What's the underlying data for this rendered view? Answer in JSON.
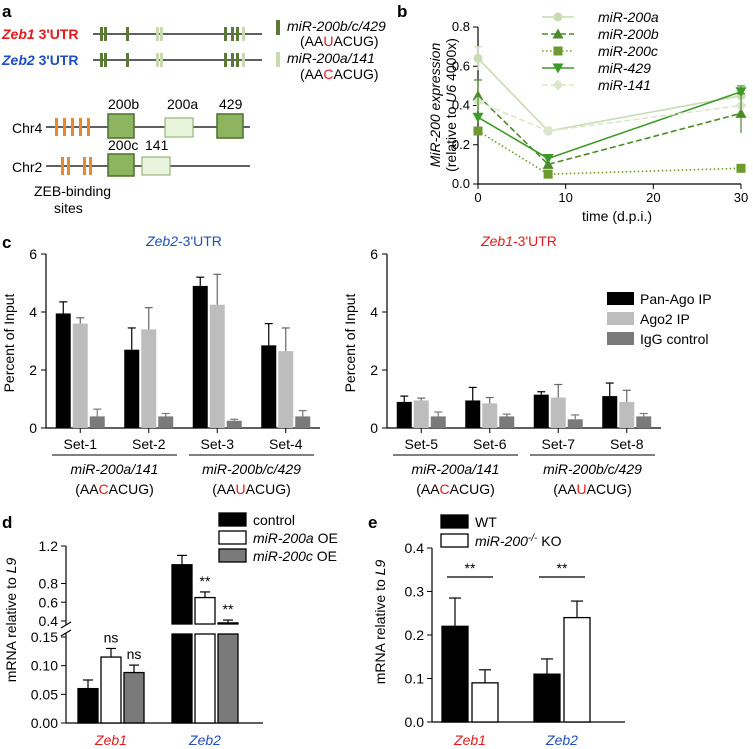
{
  "panel_a": {
    "label": "a",
    "gene1": "Zeb1",
    "gene2": "Zeb2",
    "utr": " 3'UTR",
    "legend": [
      {
        "name": "miR-200b/c/429",
        "seq_pre": "(AA",
        "seq_hl": "U",
        "seq_post": "ACUG)",
        "color": "#5b7a37"
      },
      {
        "name": "miR-200a/141",
        "seq_pre": "(AA",
        "seq_hl": "C",
        "seq_post": "ACUG)",
        "color": "#c8dbb0"
      }
    ],
    "chr4": "Chr4",
    "chr2": "Chr2",
    "genes_chr4": [
      "200b",
      "200a",
      "429"
    ],
    "genes_chr2": [
      "200c",
      "141"
    ],
    "zeb_sites_1": "ZEB-binding",
    "zeb_sites_2": "sites",
    "red": "#e41a1c",
    "blue": "#1f4fbf",
    "orange": "#e8892b"
  },
  "chart_data": [
    {
      "panel": "b",
      "type": "line",
      "ylabel_1": "MiR-200 expression",
      "ylabel_2_pre": "(relative to ",
      "ylabel_2_it": "U6",
      "ylabel_2_post": " 4000x)",
      "xlabel": "time (d.p.i.)",
      "xlim": [
        0,
        30
      ],
      "ylim": [
        0,
        0.8
      ],
      "xticks": [
        0,
        10,
        20,
        30
      ],
      "yticks": [
        0.0,
        0.2,
        0.4,
        0.6,
        0.8
      ],
      "x": [
        0,
        8,
        30
      ],
      "series": [
        {
          "name": "miR-200a",
          "values": [
            0.64,
            0.27,
            0.45
          ],
          "color": "#c9dcb3",
          "dash": "",
          "marker": "circle"
        },
        {
          "name": "miR-200b",
          "values": [
            0.45,
            0.1,
            0.36
          ],
          "color": "#4d8a2a",
          "dash": "6,3",
          "marker": "triangle-up"
        },
        {
          "name": "miR-200c",
          "values": [
            0.27,
            0.05,
            0.08
          ],
          "color": "#6c9a2f",
          "dash": "1.5,2.5",
          "marker": "square"
        },
        {
          "name": "miR-429",
          "values": [
            0.34,
            0.13,
            0.47
          ],
          "color": "#3e9a28",
          "dash": "",
          "marker": "triangle-down"
        },
        {
          "name": "miR-141",
          "values": [
            0.42,
            0.27,
            0.4
          ],
          "color": "#dbe7cc",
          "dash": "6,3",
          "marker": "diamond"
        }
      ]
    },
    {
      "panel": "c-left",
      "type": "bar",
      "title_gene": "Zeb2",
      "title_rest": "-3'UTR",
      "ylabel": "Percent of Input",
      "ylim": [
        0,
        6
      ],
      "yticks": [
        0,
        2,
        4,
        6
      ],
      "categories": [
        "Set-1",
        "Set-2",
        "Set-3",
        "Set-4"
      ],
      "series": [
        {
          "name": "Pan-Ago IP",
          "values": [
            3.95,
            2.7,
            4.9,
            2.85
          ],
          "errors": [
            0.4,
            0.75,
            0.3,
            0.75
          ],
          "color": "#000000"
        },
        {
          "name": "Ago2 IP",
          "values": [
            3.6,
            3.4,
            4.25,
            2.65
          ],
          "errors": [
            0.2,
            0.75,
            1.05,
            0.8
          ],
          "color": "#bdbdbd"
        },
        {
          "name": "IgG control",
          "values": [
            0.4,
            0.4,
            0.25,
            0.4
          ],
          "errors": [
            0.25,
            0.1,
            0.05,
            0.2
          ],
          "color": "#7a7a7a"
        }
      ],
      "groups": [
        {
          "name": "miR-200a/141",
          "seq_pre": "(AA",
          "seq_hl": "C",
          "seq_post": "ACUG)"
        },
        {
          "name": "miR-200b/c/429",
          "seq_pre": "(AA",
          "seq_hl": "U",
          "seq_post": "ACUG)"
        }
      ]
    },
    {
      "panel": "c-right",
      "type": "bar",
      "title_gene": "Zeb1",
      "title_rest": "-3'UTR",
      "ylabel": "Percent of Input",
      "ylim": [
        0,
        6
      ],
      "yticks": [
        0,
        2,
        4,
        6
      ],
      "categories": [
        "Set-5",
        "Set-6",
        "Set-7",
        "Set-8"
      ],
      "series": [
        {
          "name": "Pan-Ago IP",
          "values": [
            0.9,
            0.95,
            1.15,
            1.1
          ],
          "errors": [
            0.2,
            0.45,
            0.1,
            0.45
          ],
          "color": "#000000"
        },
        {
          "name": "Ago2 IP",
          "values": [
            0.95,
            0.85,
            1.05,
            0.9
          ],
          "errors": [
            0.08,
            0.2,
            0.45,
            0.4
          ],
          "color": "#bdbdbd"
        },
        {
          "name": "IgG control",
          "values": [
            0.4,
            0.4,
            0.3,
            0.4
          ],
          "errors": [
            0.15,
            0.08,
            0.15,
            0.1
          ],
          "color": "#7a7a7a"
        }
      ],
      "legend": [
        "Pan-Ago IP",
        "Ago2 IP",
        "IgG control"
      ],
      "groups": [
        {
          "name": "miR-200a/141",
          "seq_pre": "(AA",
          "seq_hl": "C",
          "seq_post": "ACUG)"
        },
        {
          "name": "miR-200b/c/429",
          "seq_pre": "(AA",
          "seq_hl": "U",
          "seq_post": "ACUG)"
        }
      ]
    },
    {
      "panel": "d",
      "type": "bar",
      "ylabel_pre": "mRNA relative to ",
      "ylabel_it": "L9",
      "categories": [
        "Zeb1",
        "Zeb2"
      ],
      "category_colors": [
        "#e41a1c",
        "#1f4fbf"
      ],
      "axis_break": true,
      "yticks_lower": [
        0.0,
        0.05,
        0.1,
        0.15
      ],
      "yticks_upper": [
        0.4,
        0.6,
        0.8,
        1.2
      ],
      "ytick_labels_lower": [
        "0.00",
        "0.05",
        "0.10",
        "0.15"
      ],
      "ytick_labels_upper": [
        "0.4",
        "0.6",
        "0.8",
        "1.2"
      ],
      "series": [
        {
          "name": "control",
          "legend_pre": "control",
          "legend_it": "",
          "legend_post": "",
          "values": [
            0.06,
            1.0
          ],
          "errors": [
            0.015,
            0.1
          ],
          "color": "#000000"
        },
        {
          "name": "miR-200a OE",
          "legend_pre": "",
          "legend_it": "miR-200a",
          "legend_post": " OE",
          "values": [
            0.115,
            0.65
          ],
          "errors": [
            0.015,
            0.06
          ],
          "color": "#ffffff"
        },
        {
          "name": "miR-200c OE",
          "legend_pre": "",
          "legend_it": "miR-200c",
          "legend_post": " OE",
          "values": [
            0.088,
            0.38
          ],
          "errors": [
            0.013,
            0.03
          ],
          "color": "#7a7a7a"
        }
      ],
      "annotations": [
        "ns",
        "ns",
        "**",
        "**"
      ]
    },
    {
      "panel": "e",
      "type": "bar",
      "ylabel_pre": "mRNA relative to ",
      "ylabel_it": "L9",
      "categories": [
        "Zeb1",
        "Zeb2"
      ],
      "category_colors": [
        "#e41a1c",
        "#1f4fbf"
      ],
      "ylim": [
        0,
        0.4
      ],
      "yticks": [
        0.0,
        0.1,
        0.2,
        0.3,
        0.4
      ],
      "series": [
        {
          "name": "WT",
          "legend_pre": "WT",
          "legend_it": "",
          "legend_post": "",
          "values": [
            0.22,
            0.11
          ],
          "errors": [
            0.065,
            0.035
          ],
          "color": "#000000"
        },
        {
          "name": "miR-200-/- KO",
          "legend_pre": "",
          "legend_it": "miR-200",
          "legend_sup": "-/-",
          "legend_post": " KO",
          "values": [
            0.09,
            0.24
          ],
          "errors": [
            0.03,
            0.038
          ],
          "color": "#ffffff"
        }
      ],
      "annotations": [
        "**",
        "**"
      ]
    }
  ],
  "labels": {
    "c": "c",
    "d": "d",
    "e": "e",
    "b": "b"
  }
}
